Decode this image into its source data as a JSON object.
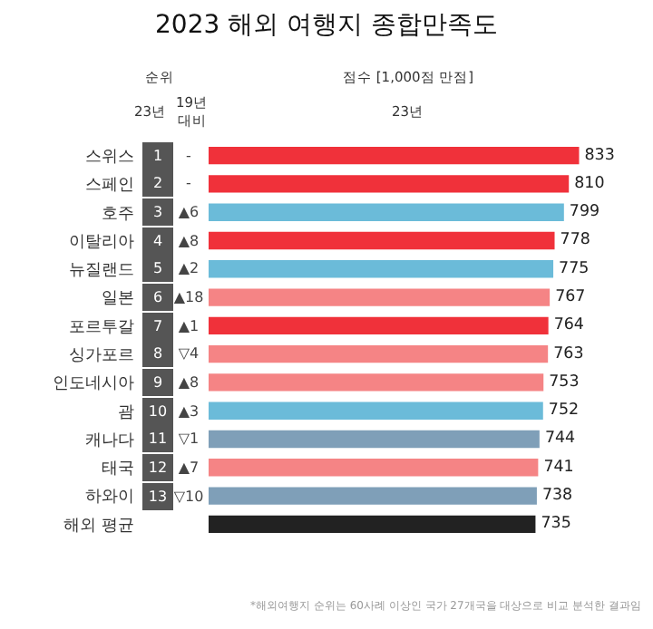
{
  "chart_data": {
    "type": "bar",
    "orientation": "horizontal",
    "title": "2023 해외 여행지 종합만족도",
    "categories": [
      "스위스",
      "스페인",
      "호주",
      "이탈리아",
      "뉴질랜드",
      "일본",
      "포르투갈",
      "싱가포르",
      "인도네시아",
      "괌",
      "캐나다",
      "태국",
      "하와이",
      "해외 평균"
    ],
    "values": [
      833,
      810,
      799,
      778,
      775,
      767,
      764,
      763,
      753,
      752,
      744,
      741,
      738,
      735
    ],
    "colors": [
      "#f0313a",
      "#f0313a",
      "#6bbbd9",
      "#f0313a",
      "#6bbbd9",
      "#f58485",
      "#f0313a",
      "#f58485",
      "#f58485",
      "#6bbbd9",
      "#7f9fb8",
      "#f58485",
      "#7f9fb8",
      "#222222"
    ],
    "data_labels": true,
    "tick_labels": "y",
    "annotations": [
      "순위",
      "23년",
      "19년 대비",
      "점수 [1,000점 만점]",
      "23년",
      "1",
      "-",
      "2",
      "-",
      "3",
      "▲6",
      "4",
      "▲8",
      "5",
      "▲2",
      "6",
      "▲18",
      "7",
      "▲1",
      "8",
      "▽4",
      "9",
      "▲8",
      "10",
      "▲3",
      "11",
      "▽1",
      "12",
      "▲7",
      "13",
      "▽10",
      "*해외여행지 순위는 60사례 이상인 국가 27개국을 대상으로 비교 분석한 결과임"
    ]
  }
}
